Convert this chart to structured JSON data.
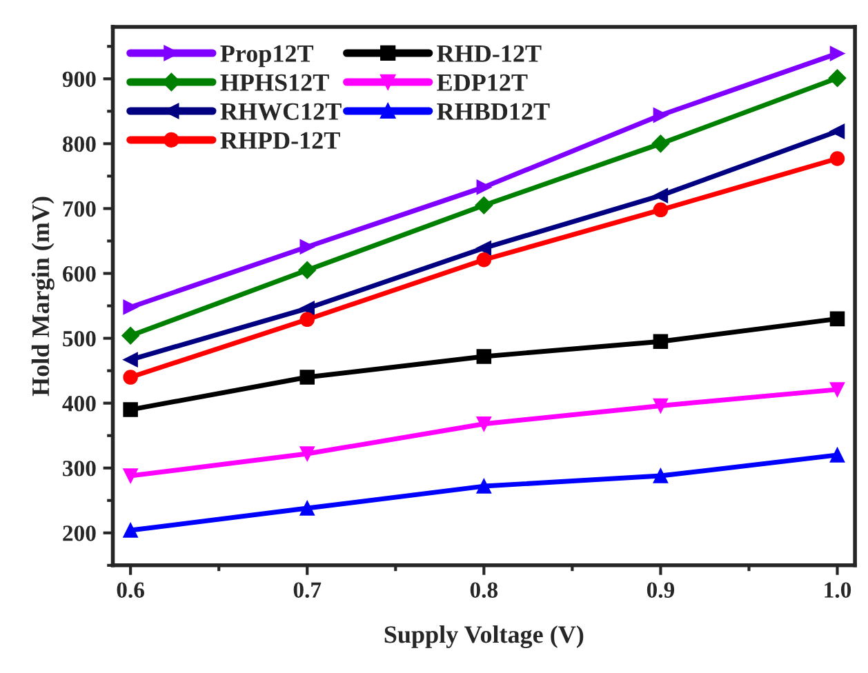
{
  "chart_data": {
    "type": "line",
    "xlabel": "Supply Voltage (V)",
    "ylabel": "Hold Margin (mV)",
    "x": [
      0.6,
      0.7,
      0.8,
      0.9,
      1.0
    ],
    "series": [
      {
        "name": "Prop12T",
        "color": "#8000ff",
        "marker": "triangle-right",
        "values": [
          548,
          641,
          733,
          844,
          939
        ]
      },
      {
        "name": "HPHS12T",
        "color": "#008000",
        "marker": "diamond",
        "values": [
          504,
          605,
          705,
          800,
          901
        ]
      },
      {
        "name": "RHWC12T",
        "color": "#000080",
        "marker": "triangle-left",
        "values": [
          467,
          546,
          639,
          720,
          819
        ]
      },
      {
        "name": "RHPD-12T",
        "color": "#ff0000",
        "marker": "circle",
        "values": [
          440,
          529,
          621,
          698,
          777
        ]
      },
      {
        "name": "RHD-12T",
        "color": "#000000",
        "marker": "square",
        "values": [
          390,
          440,
          472,
          495,
          530
        ]
      },
      {
        "name": "EDP12T",
        "color": "#ff00ff",
        "marker": "triangle-down",
        "values": [
          288,
          322,
          368,
          396,
          421
        ]
      },
      {
        "name": "RHBD12T",
        "color": "#0000ff",
        "marker": "triangle",
        "values": [
          204,
          238,
          272,
          288,
          320
        ]
      }
    ],
    "xlim": [
      0.59,
      1.01
    ],
    "xticks": [
      0.6,
      0.7,
      0.8,
      0.9,
      {
        "value": 1.0,
        "label": "1.0"
      }
    ],
    "ylim": [
      150,
      980
    ],
    "yticks": [
      200,
      300,
      400,
      500,
      600,
      700,
      800,
      900
    ],
    "grid": false,
    "legend": "top left",
    "line_style": "solid"
  }
}
